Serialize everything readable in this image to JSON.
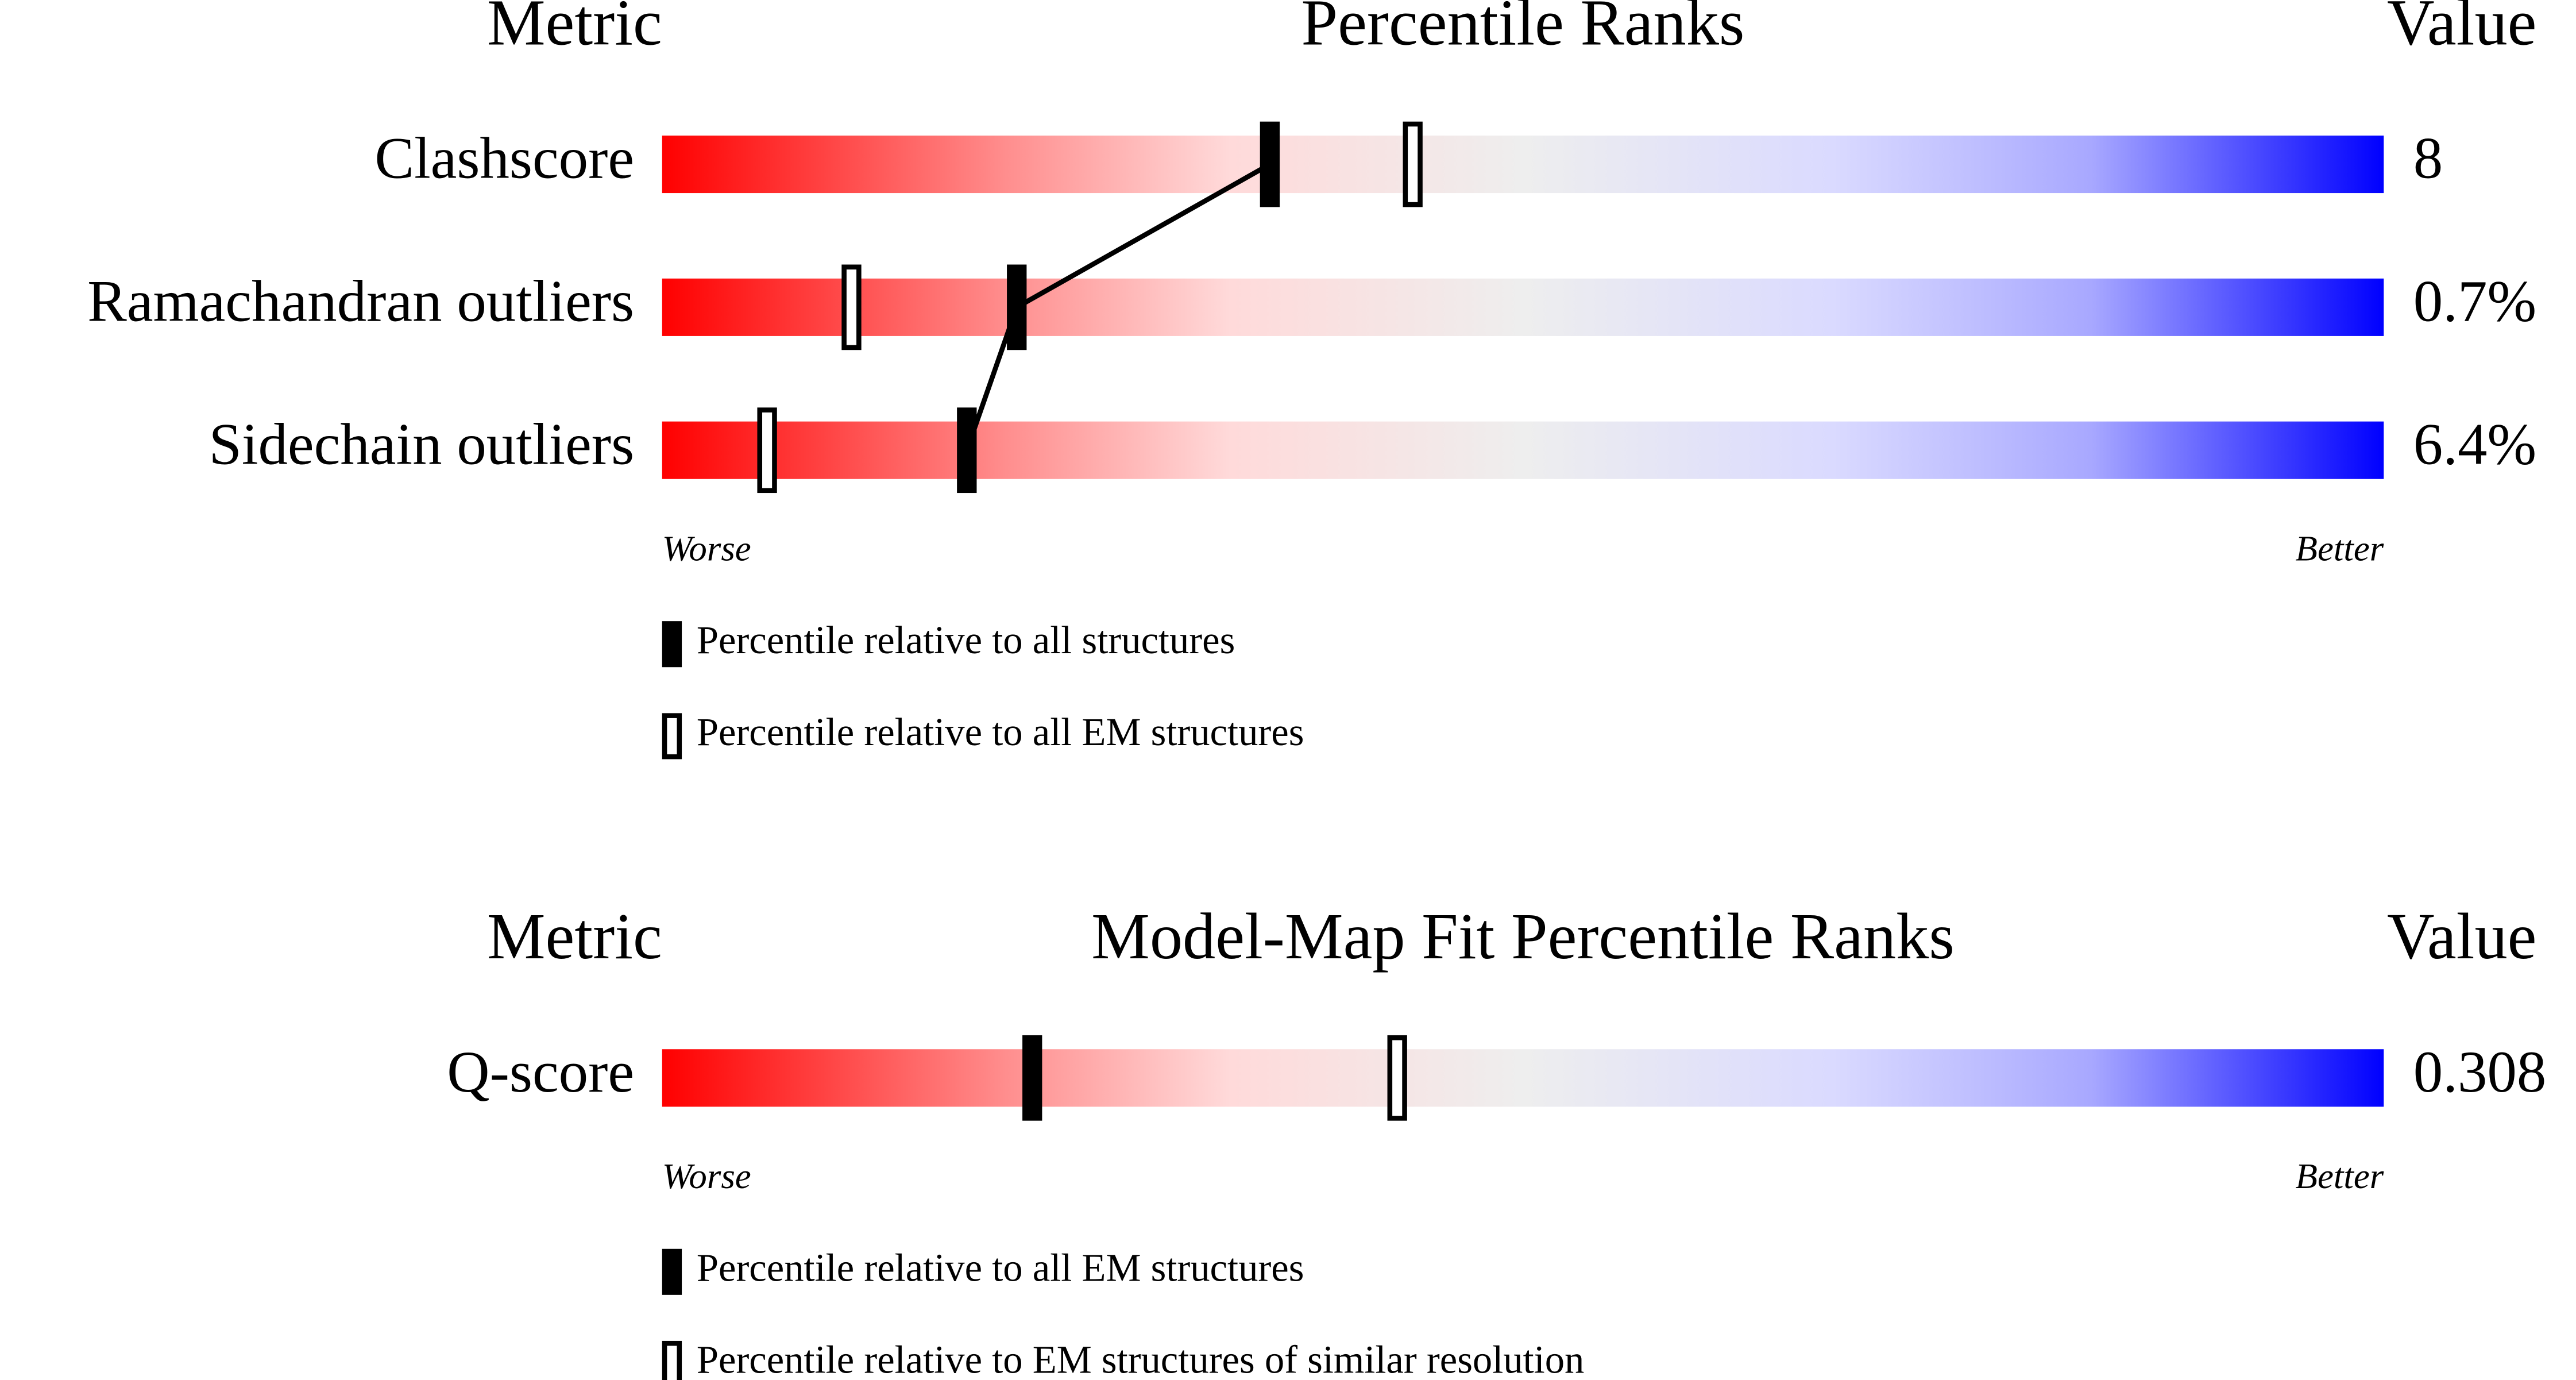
{
  "chart_data": [
    {
      "type": "percentile",
      "metric_header": "Metric",
      "title": "Percentile Ranks",
      "value_header": "Value",
      "categories": [
        "Clashscore",
        "Ramachandran outliers",
        "Sidechain outliers"
      ],
      "metric_values": [
        "8",
        "0.7%",
        "6.4%"
      ],
      "series": [
        {
          "name": "Percentile relative to all structures",
          "style": "filled",
          "color": "#000000",
          "values": [
            35.3,
            20.6,
            17.7
          ]
        },
        {
          "name": "Percentile relative to all EM structures",
          "style": "open",
          "color": "#000000",
          "values": [
            43.6,
            11.0,
            6.1
          ]
        }
      ],
      "xlim": [
        0,
        100
      ],
      "low_label": "Worse",
      "high_label": "Better"
    },
    {
      "type": "percentile",
      "metric_header": "Metric",
      "title": "Model-Map Fit Percentile Ranks",
      "value_header": "Value",
      "categories": [
        "Q-score"
      ],
      "metric_values": [
        "0.308"
      ],
      "series": [
        {
          "name": "Percentile relative to all EM structures",
          "style": "filled",
          "color": "#000000",
          "values": [
            21.5
          ]
        },
        {
          "name": "Percentile relative to EM structures of similar resolution",
          "style": "open",
          "color": "#000000",
          "values": [
            42.7
          ]
        }
      ],
      "xlim": [
        0,
        100
      ],
      "low_label": "Worse",
      "high_label": "Better"
    }
  ]
}
